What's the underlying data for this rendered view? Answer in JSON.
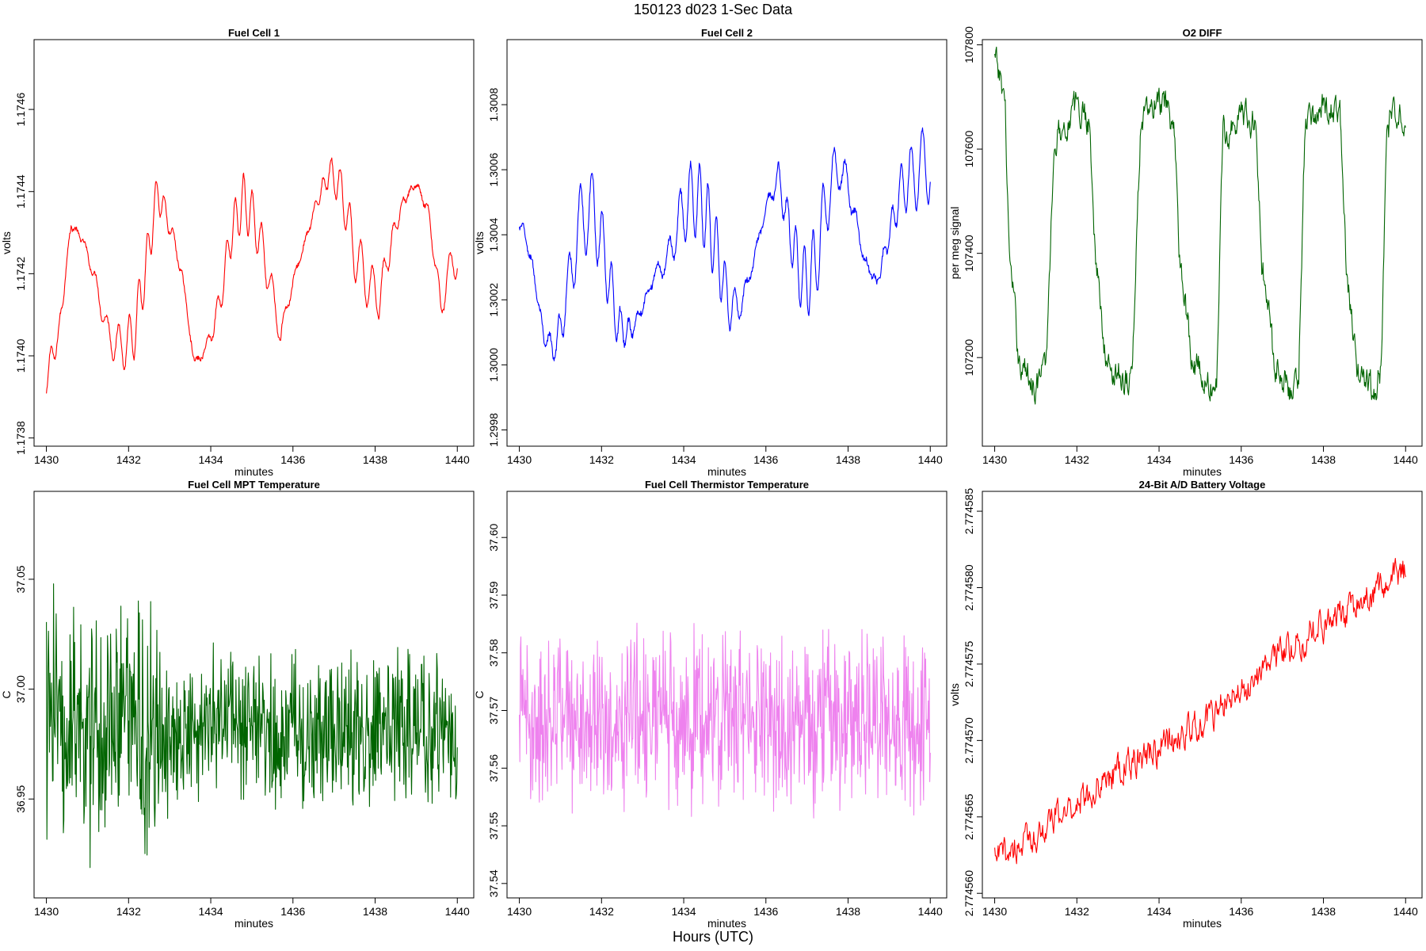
{
  "figure": {
    "title": "150123    d023    1-Sec Data",
    "footer": "Hours (UTC)"
  },
  "chart_data": [
    {
      "type": "line",
      "title": "Fuel Cell 1",
      "xlabel": "minutes",
      "ylabel": "volts",
      "color": "#ff0000",
      "xlim": [
        1429.7,
        1440.4
      ],
      "ylim": [
        1.17378,
        1.17477
      ],
      "xticks": [
        "1430",
        "1432",
        "1434",
        "1436",
        "1438",
        "1440"
      ],
      "yticks": [
        "1.1738",
        "1.1740",
        "1.1742",
        "1.1744",
        "1.1746"
      ],
      "x": [
        1430.0,
        1430.3,
        1430.6,
        1430.9,
        1431.2,
        1431.5,
        1431.8,
        1432.1,
        1432.4,
        1432.7,
        1433.0,
        1433.3,
        1433.6,
        1433.9,
        1434.2,
        1434.5,
        1434.8,
        1435.1,
        1435.4,
        1435.7,
        1436.0,
        1436.3,
        1436.6,
        1436.9,
        1437.2,
        1437.5,
        1437.8,
        1438.1,
        1438.4,
        1438.7,
        1439.0,
        1439.3,
        1439.6,
        1439.9
      ],
      "values": [
        1.17395,
        1.17405,
        1.17432,
        1.17428,
        1.17418,
        1.17405,
        1.17402,
        1.17404,
        1.1742,
        1.1744,
        1.17432,
        1.1742,
        1.17398,
        1.17402,
        1.17412,
        1.1743,
        1.17438,
        1.17432,
        1.1742,
        1.17405,
        1.17418,
        1.17428,
        1.17438,
        1.17445,
        1.1744,
        1.17425,
        1.17418,
        1.17414,
        1.17428,
        1.17438,
        1.17442,
        1.17435,
        1.17412,
        1.17424
      ],
      "amplitude": 6.5e-05
    },
    {
      "type": "line",
      "title": "Fuel Cell 2",
      "xlabel": "minutes",
      "ylabel": "volts",
      "color": "#0000ff",
      "xlim": [
        1429.7,
        1440.4
      ],
      "ylim": [
        1.29975,
        1.301
      ],
      "xticks": [
        "1430",
        "1432",
        "1434",
        "1436",
        "1438",
        "1440"
      ],
      "yticks": [
        "1.2998",
        "1.3000",
        "1.3002",
        "1.3004",
        "1.3006",
        "1.3008"
      ],
      "x": [
        1430.0,
        1430.3,
        1430.6,
        1430.9,
        1431.2,
        1431.5,
        1431.8,
        1432.1,
        1432.4,
        1432.7,
        1433.0,
        1433.3,
        1433.6,
        1433.9,
        1434.2,
        1434.5,
        1434.8,
        1435.1,
        1435.4,
        1435.7,
        1436.0,
        1436.3,
        1436.6,
        1436.9,
        1437.2,
        1437.5,
        1437.8,
        1438.1,
        1438.4,
        1438.7,
        1439.0,
        1439.3,
        1439.6,
        1439.9
      ],
      "values": [
        1.30045,
        1.30032,
        1.30008,
        1.30005,
        1.30025,
        1.30045,
        1.30048,
        1.30032,
        1.30012,
        1.3001,
        1.30018,
        1.30028,
        1.30032,
        1.30045,
        1.30052,
        1.30048,
        1.30035,
        1.30018,
        1.30018,
        1.30032,
        1.30048,
        1.30058,
        1.3004,
        1.30025,
        1.3003,
        1.30052,
        1.30062,
        1.3005,
        1.30032,
        1.30025,
        1.3004,
        1.30055,
        1.30058,
        1.30062
      ],
      "amplitude": 0.00012
    },
    {
      "type": "line",
      "title": "O2 DIFF",
      "xlabel": "minutes",
      "ylabel": "per meg signal",
      "color": "#006400",
      "xlim": [
        1429.7,
        1440.4
      ],
      "ylim": [
        107030,
        107810
      ],
      "xticks": [
        "1430",
        "1432",
        "1434",
        "1436",
        "1438",
        "1440"
      ],
      "yticks": [
        "107200",
        "107400",
        "107600",
        "107800"
      ],
      "x": [
        1430.0,
        1430.25,
        1430.35,
        1430.6,
        1431.0,
        1431.25,
        1431.45,
        1432.0,
        1432.3,
        1432.45,
        1432.7,
        1433.2,
        1433.35,
        1433.55,
        1434.0,
        1434.35,
        1434.5,
        1434.8,
        1435.2,
        1435.4,
        1435.55,
        1436.0,
        1436.35,
        1436.5,
        1436.8,
        1437.2,
        1437.4,
        1437.55,
        1438.0,
        1438.4,
        1438.55,
        1438.8,
        1439.2,
        1439.4,
        1439.55,
        1439.95
      ],
      "values": [
        107770,
        107700,
        107400,
        107190,
        107150,
        107180,
        107620,
        107680,
        107660,
        107400,
        107190,
        107160,
        107170,
        107650,
        107690,
        107650,
        107400,
        107200,
        107140,
        107150,
        107630,
        107670,
        107650,
        107390,
        107190,
        107140,
        107160,
        107640,
        107690,
        107660,
        107380,
        107180,
        107130,
        107180,
        107640,
        107670
      ],
      "amplitude": 30
    },
    {
      "type": "line",
      "title": "Fuel Cell MPT Temperature",
      "xlabel": "minutes",
      "ylabel": "C",
      "color": "#006400",
      "xlim": [
        1429.7,
        1440.4
      ],
      "ylim": [
        36.905,
        37.09
      ],
      "xticks": [
        "1430",
        "1432",
        "1434",
        "1436",
        "1438",
        "1440"
      ],
      "yticks": [
        "36.95",
        "37.00",
        "37.05"
      ],
      "x": [
        1430.0,
        1440.0
      ],
      "values": [
        36.985,
        36.98
      ],
      "amplitude": 0.055
    },
    {
      "type": "line",
      "title": "Fuel Cell Thermistor Temperature",
      "xlabel": "minutes",
      "ylabel": "C",
      "color": "#ee82ee",
      "xlim": [
        1429.7,
        1440.4
      ],
      "ylim": [
        37.5375,
        37.608
      ],
      "xticks": [
        "1430",
        "1432",
        "1434",
        "1436",
        "1438",
        "1440"
      ],
      "yticks": [
        "37.54",
        "37.55",
        "37.56",
        "37.57",
        "37.58",
        "37.59",
        "37.60"
      ],
      "x": [
        1430.0,
        1440.0
      ],
      "values": [
        37.569,
        37.568
      ],
      "amplitude": 0.018
    },
    {
      "type": "line",
      "title": "24-Bit A/D Battery Voltage",
      "xlabel": "minutes",
      "ylabel": "volts",
      "color": "#ff0000",
      "xlim": [
        1429.7,
        1440.4
      ],
      "ylim": [
        2.7745597,
        2.7745863
      ],
      "xticks": [
        "1430",
        "1432",
        "1434",
        "1436",
        "1438",
        "1440"
      ],
      "yticks": [
        "2.774560",
        "2.774565",
        "2.774570",
        "2.774575",
        "2.774580",
        "2.774585"
      ],
      "x": [
        1430.0,
        1431.0,
        1432.0,
        1433.0,
        1434.0,
        1435.0,
        1436.0,
        1437.0,
        1438.0,
        1439.0,
        1440.0
      ],
      "values": [
        2.7745622,
        2.7745638,
        2.774566,
        2.774568,
        2.7745695,
        2.774571,
        2.7745732,
        2.7745758,
        2.7745775,
        2.774579,
        2.7745812
      ],
      "amplitude": 1.2e-06
    }
  ]
}
